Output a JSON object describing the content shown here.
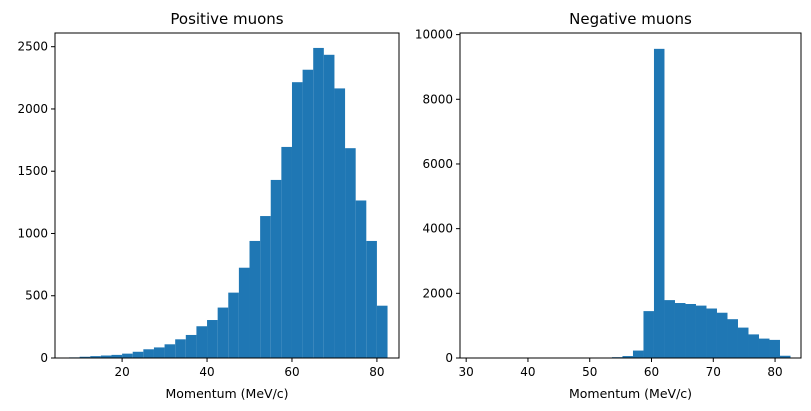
{
  "chart_data": [
    {
      "type": "bar",
      "title": "Positive muons",
      "xlabel": "Momentum (MeV/c)",
      "ylabel": "",
      "xlim": [
        4.2,
        85.2
      ],
      "ylim": [
        0,
        2610
      ],
      "xticks": [
        20,
        40,
        60,
        80
      ],
      "yticks": [
        0,
        500,
        1000,
        1500,
        2000,
        2500
      ],
      "bar_color": "#1f77b4",
      "bin_width": 2.5,
      "bin_starts": [
        7.5,
        10.0,
        12.5,
        15.0,
        17.5,
        20.0,
        22.5,
        25.0,
        27.5,
        30.0,
        32.5,
        35.0,
        37.5,
        40.0,
        42.5,
        45.0,
        47.5,
        50.0,
        52.5,
        55.0,
        57.5,
        60.0,
        62.5,
        65.0,
        67.5,
        70.0,
        72.5,
        75.0,
        77.5,
        80.0
      ],
      "values": [
        5,
        10,
        15,
        20,
        25,
        35,
        50,
        70,
        85,
        110,
        150,
        185,
        255,
        305,
        405,
        525,
        725,
        940,
        1140,
        1430,
        1695,
        2215,
        2315,
        2490,
        2435,
        2165,
        1685,
        1265,
        940,
        420
      ]
    },
    {
      "type": "bar",
      "title": "Negative muons",
      "xlabel": "Momentum (MeV/c)",
      "ylabel": "",
      "xlim": [
        29.0,
        84.2
      ],
      "ylim": [
        0,
        10050
      ],
      "xticks": [
        30,
        40,
        50,
        60,
        70,
        80
      ],
      "yticks": [
        0,
        2000,
        4000,
        6000,
        8000,
        10000
      ],
      "bar_color": "#1f77b4",
      "bin_width": 1.7,
      "bin_starts": [
        31.5,
        33.2,
        34.9,
        36.6,
        38.3,
        40.0,
        41.7,
        43.4,
        45.1,
        46.8,
        48.5,
        50.2,
        51.9,
        53.6,
        55.3,
        57.0,
        58.7,
        60.4,
        62.1,
        63.8,
        65.5,
        67.2,
        68.9,
        70.6,
        72.3,
        74.0,
        75.7,
        77.4,
        79.1,
        80.8
      ],
      "values": [
        0,
        0,
        0,
        0,
        0,
        0,
        0,
        0,
        0,
        0,
        5,
        10,
        15,
        25,
        60,
        230,
        1450,
        9560,
        1790,
        1700,
        1670,
        1620,
        1530,
        1400,
        1200,
        940,
        730,
        600,
        560,
        70
      ]
    }
  ]
}
